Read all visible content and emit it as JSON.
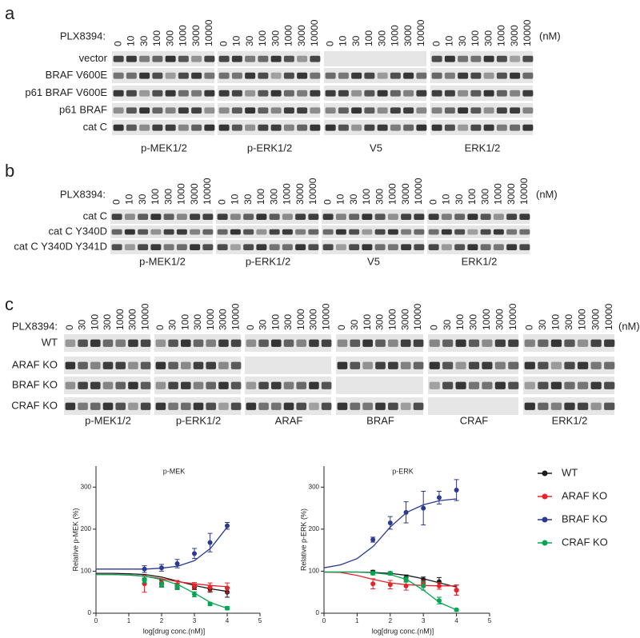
{
  "panels": [
    {
      "label": "a",
      "drug": "PLX8394:",
      "unit": "(nM)",
      "concentrations": [
        "0",
        "10",
        "30",
        "100",
        "300",
        "1000",
        "3000",
        "10000"
      ],
      "rows": [
        "vector",
        "BRAF V600E",
        "p61 BRAF V600E",
        "p61 BRAF",
        "cat C"
      ],
      "blots": [
        "p-MEK1/2",
        "p-ERK1/2",
        "V5",
        "ERK1/2"
      ]
    },
    {
      "label": "b",
      "drug": "PLX8394:",
      "unit": "(nM)",
      "concentrations": [
        "0",
        "10",
        "30",
        "100",
        "300",
        "1000",
        "3000",
        "10000"
      ],
      "rows": [
        "cat C",
        "cat C Y340D",
        "cat C Y340D Y341D"
      ],
      "blots": [
        "p-MEK1/2",
        "p-ERK1/2",
        "V5",
        "ERK1/2"
      ]
    },
    {
      "label": "c",
      "drug": "PLX8394:",
      "unit": "(nM)",
      "concentrations": [
        "0",
        "30",
        "100",
        "300",
        "1000",
        "3000",
        "10000"
      ],
      "rows": [
        "WT",
        "ARAF KO",
        "BRAF KO",
        "CRAF KO"
      ],
      "blots": [
        "p-MEK1/2",
        "p-ERK1/2",
        "ARAF",
        "BRAF",
        "CRAF",
        "ERK1/2"
      ]
    }
  ],
  "chart_data": [
    {
      "type": "line",
      "title": "p-MEK",
      "x_label": "log[drug conc.(nM)]",
      "y_label": "Relative p-MEK (%)",
      "x": [
        1.477,
        2,
        2.477,
        3,
        3.477,
        4
      ],
      "xlim": [
        0,
        5
      ],
      "ylim": [
        0,
        350
      ],
      "xticks": [
        0,
        1,
        2,
        3,
        4,
        5
      ],
      "yticks": [
        0,
        100,
        200,
        300
      ],
      "fit_x": [
        0,
        0.5,
        1,
        1.5,
        2,
        2.5,
        3,
        3.5,
        4
      ],
      "series": [
        {
          "name": "WT",
          "color": "#1a1a1a",
          "values": [
            80,
            70,
            65,
            62,
            58,
            50
          ],
          "errors": [
            8,
            8,
            6,
            6,
            8,
            12
          ],
          "fit": [
            95,
            95,
            94,
            92,
            86,
            76,
            66,
            58,
            52
          ]
        },
        {
          "name": "ARAF KO",
          "color": "#e8232a",
          "values": [
            70,
            72,
            68,
            65,
            62,
            60
          ],
          "errors": [
            20,
            8,
            10,
            8,
            10,
            12
          ],
          "fit": [
            92,
            92,
            91,
            88,
            82,
            75,
            70,
            66,
            63
          ]
        },
        {
          "name": "BRAF KO",
          "color": "#2b3990",
          "values": [
            105,
            108,
            118,
            142,
            168,
            208
          ],
          "errors": [
            8,
            8,
            10,
            12,
            22,
            8
          ],
          "fit": [
            105,
            105,
            105,
            105,
            107,
            112,
            125,
            155,
            205
          ]
        },
        {
          "name": "CRAF KO",
          "color": "#00a651",
          "values": [
            78,
            68,
            62,
            45,
            22,
            12
          ],
          "errors": [
            6,
            6,
            6,
            6,
            4,
            4
          ],
          "fit": [
            92,
            92,
            91,
            88,
            80,
            68,
            48,
            25,
            12
          ]
        }
      ]
    },
    {
      "type": "line",
      "title": "p-ERK",
      "x_label": "log[drug conc.(nM)]",
      "y_label": "Relative p-ERK (%)",
      "x": [
        1.477,
        2,
        2.477,
        3,
        3.477,
        4
      ],
      "xlim": [
        0,
        5
      ],
      "ylim": [
        0,
        350
      ],
      "xticks": [
        0,
        1,
        2,
        3,
        4,
        5
      ],
      "yticks": [
        0,
        100,
        200,
        300
      ],
      "fit_x": [
        0,
        0.5,
        1,
        1.5,
        2,
        2.5,
        3,
        3.5,
        4
      ],
      "series": [
        {
          "name": "WT",
          "color": "#1a1a1a",
          "values": [
            98,
            95,
            85,
            80,
            75,
            55
          ],
          "errors": [
            4,
            4,
            6,
            6,
            10,
            12
          ],
          "fit": [
            98,
            98,
            98,
            97,
            95,
            90,
            82,
            72,
            62
          ]
        },
        {
          "name": "ARAF KO",
          "color": "#e8232a",
          "values": [
            70,
            68,
            65,
            70,
            65,
            55
          ],
          "errors": [
            12,
            10,
            10,
            8,
            8,
            12
          ],
          "fit": [
            98,
            97,
            90,
            80,
            72,
            68,
            66,
            65,
            65
          ]
        },
        {
          "name": "BRAF KO",
          "color": "#2b3990",
          "values": [
            175,
            215,
            240,
            250,
            275,
            293
          ],
          "errors": [
            6,
            15,
            25,
            40,
            15,
            25
          ],
          "fit": [
            108,
            115,
            130,
            160,
            205,
            240,
            258,
            268,
            272
          ]
        },
        {
          "name": "CRAF KO",
          "color": "#00a651",
          "values": [
            95,
            95,
            80,
            65,
            30,
            8
          ],
          "errors": [
            4,
            4,
            6,
            10,
            8,
            3
          ],
          "fit": [
            98,
            98,
            98,
            96,
            92,
            80,
            55,
            25,
            8
          ]
        }
      ]
    }
  ]
}
